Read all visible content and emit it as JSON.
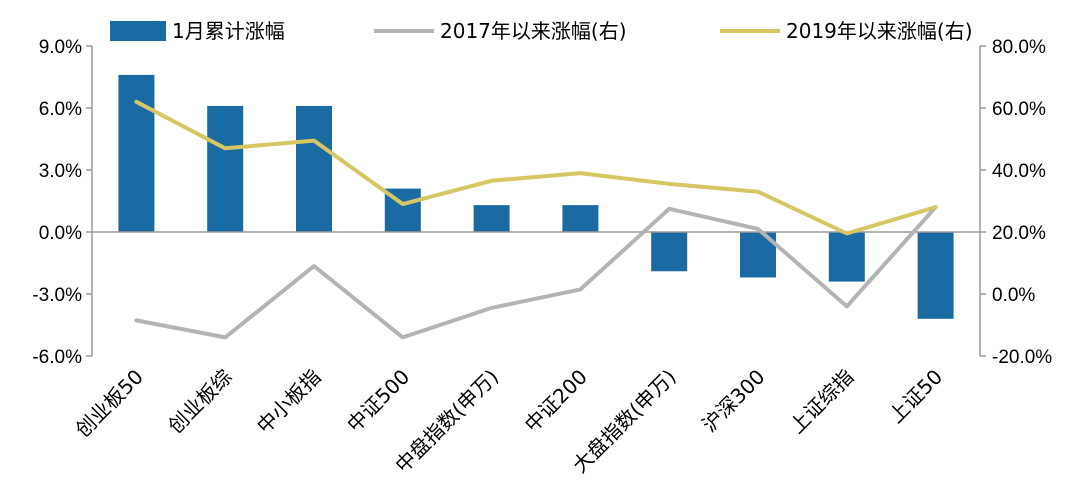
{
  "chart_data": {
    "type": "bar+line",
    "categories": [
      "创业板50",
      "创业板综",
      "中小板指",
      "中证500",
      "中盘指数(申万)",
      "中证200",
      "大盘指数(申万)",
      "沪深300",
      "上证综指",
      "上证50"
    ],
    "series": [
      {
        "name": "1月累计涨幅",
        "type": "bar",
        "axis": "left",
        "color": "#1a6aa3",
        "values": [
          7.6,
          6.1,
          6.1,
          2.1,
          1.3,
          1.3,
          -1.9,
          -2.2,
          -2.4,
          -4.2
        ]
      },
      {
        "name": "2017年以来涨幅(右)",
        "type": "line",
        "axis": "right",
        "color": "#b4b4b4",
        "values": [
          -8.5,
          -14,
          9,
          -14,
          -4.5,
          1.5,
          27.5,
          21,
          -4,
          28
        ]
      },
      {
        "name": "2019年以来涨幅(右)",
        "type": "line",
        "axis": "right",
        "color": "#d6c664",
        "values": [
          62,
          47,
          49.5,
          29,
          36.5,
          39,
          35.5,
          33,
          19.5,
          28
        ]
      }
    ],
    "y_left": {
      "min": -6,
      "max": 9,
      "ticks": [
        "9.0%",
        "6.0%",
        "3.0%",
        "0.0%",
        "-3.0%",
        "-6.0%"
      ]
    },
    "y_right": {
      "min": -20,
      "max": 80,
      "ticks": [
        "80.0%",
        "60.0%",
        "40.0%",
        "20.0%",
        "0.0%",
        "-20.0%"
      ]
    },
    "legend": [
      "1月累计涨幅",
      "2017年以来涨幅(右)",
      "2019年以来涨幅(右)"
    ],
    "legend_position": "top"
  }
}
